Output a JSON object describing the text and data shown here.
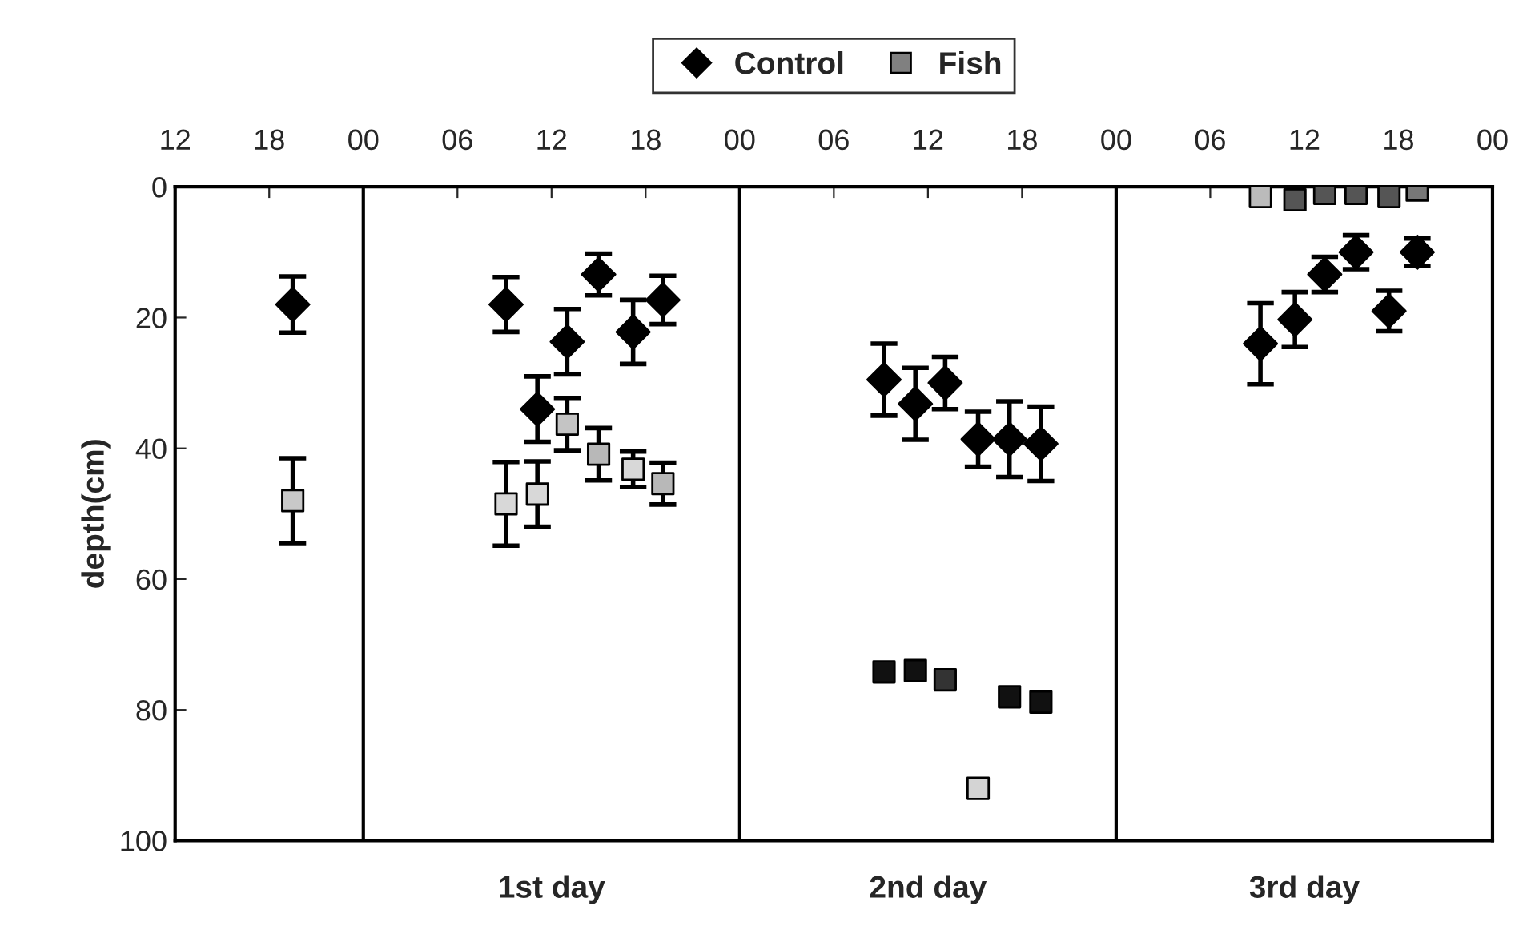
{
  "chart_data": {
    "type": "scatter",
    "ylabel": "depth(cm)",
    "xlim": [
      12,
      96
    ],
    "xticks": [
      {
        "value": 12,
        "label": "12"
      },
      {
        "value": 18,
        "label": "18"
      },
      {
        "value": 24,
        "label": "00"
      },
      {
        "value": 30,
        "label": "06"
      },
      {
        "value": 36,
        "label": "12"
      },
      {
        "value": 42,
        "label": "18"
      },
      {
        "value": 48,
        "label": "00"
      },
      {
        "value": 54,
        "label": "06"
      },
      {
        "value": 60,
        "label": "12"
      },
      {
        "value": 66,
        "label": "18"
      },
      {
        "value": 72,
        "label": "00"
      },
      {
        "value": 78,
        "label": "06"
      },
      {
        "value": 84,
        "label": "12"
      },
      {
        "value": 90,
        "label": "18"
      },
      {
        "value": 96,
        "label": "00"
      }
    ],
    "ylim": [
      100,
      0
    ],
    "yticks": [
      0,
      20,
      40,
      60,
      80,
      100
    ],
    "grid": false,
    "legend": "top",
    "ref_lines": [
      {
        "axis": "x",
        "value": 24,
        "color": "#000000"
      },
      {
        "axis": "x",
        "value": 48,
        "color": "#000000"
      },
      {
        "axis": "x",
        "value": 72,
        "color": "#000000"
      }
    ],
    "annotations": [
      "1st day",
      "2nd day",
      "3rd day"
    ],
    "series": [
      {
        "name": "Control",
        "color": "#000000",
        "marker": "diamond",
        "x": [
          19.5,
          33.1,
          35.1,
          37,
          39,
          41.2,
          43.1,
          57.2,
          59.2,
          61.1,
          63.2,
          65.2,
          67.2,
          81.2,
          83.4,
          85.3,
          87.3,
          89.4,
          91.2
        ],
        "values": [
          18,
          18,
          34,
          23.7,
          13.4,
          22.2,
          17.3,
          29.5,
          33.2,
          30,
          38.6,
          38.6,
          39.3,
          24,
          20.3,
          13.4,
          10,
          19,
          10
        ],
        "errors": [
          4.3,
          4.2,
          5,
          5,
          3.2,
          4.9,
          3.7,
          5.5,
          5.5,
          4,
          4.2,
          5.8,
          5.7,
          6.2,
          4.2,
          2.7,
          2.6,
          3.1,
          2.1
        ]
      },
      {
        "name": "Fish",
        "color": "#808080",
        "marker": "square",
        "colors": [
          "#c8c8c8",
          "#d8d8d8",
          "#d8d8d8",
          "#c4c4c4",
          "#b8b8b8",
          "#d8d8d8",
          "#b8b8b8",
          "#111111",
          "#111111",
          "#333333",
          "#d4d4d4",
          "#111111",
          "#111111",
          "#bbbbbb",
          "#555555",
          "#555555",
          "#555555",
          "#555555",
          "#777777"
        ],
        "x": [
          19.5,
          33.1,
          35.1,
          37,
          39,
          41.2,
          43.1,
          57.2,
          59.2,
          61.1,
          63.2,
          65.2,
          67.2,
          81.2,
          83.4,
          85.3,
          87.3,
          89.4,
          91.2
        ],
        "values": [
          48,
          48.5,
          47,
          36.3,
          40.9,
          43.2,
          45.4,
          74.2,
          74,
          75.4,
          92,
          78,
          78.8,
          1.5,
          2,
          1,
          1,
          1.5,
          0.5
        ],
        "errors": [
          6.5,
          6.4,
          5,
          4,
          4,
          2.7,
          3.2,
          null,
          null,
          null,
          null,
          null,
          null,
          null,
          null,
          null,
          null,
          null,
          null
        ]
      }
    ]
  }
}
